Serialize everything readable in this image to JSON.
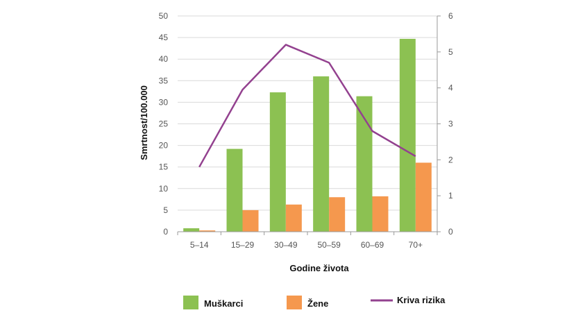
{
  "chart_data": {
    "type": "bar",
    "categories": [
      "5–14",
      "15–29",
      "30–49",
      "50–59",
      "60–69",
      "70+"
    ],
    "xlabel": "Godine života",
    "ylabel": "Smrtnost/100.000",
    "ylim": [
      0,
      50
    ],
    "y_ticks": [
      "0",
      "5",
      "10",
      "15",
      "20",
      "25",
      "30",
      "35",
      "40",
      "45",
      "50"
    ],
    "y2lim": [
      0,
      6
    ],
    "y2_ticks": [
      "0",
      "1",
      "2",
      "3",
      "4",
      "5",
      "6"
    ],
    "series": [
      {
        "name": "Muškarci",
        "type": "bar",
        "axis": "left",
        "color": "#8cc152",
        "values": [
          0.8,
          19.2,
          32.3,
          36.0,
          31.4,
          44.7
        ]
      },
      {
        "name": "Žene",
        "type": "bar",
        "axis": "left",
        "color": "#f5984e",
        "values": [
          0.3,
          5.0,
          6.3,
          8.0,
          8.2,
          16.0
        ]
      },
      {
        "name": "Kriva rizika",
        "type": "line",
        "axis": "right",
        "color": "#93418f",
        "values": [
          1.8,
          3.95,
          5.2,
          4.7,
          2.8,
          2.1
        ]
      }
    ],
    "grid": {
      "horizontal": true,
      "vertical": false
    },
    "legend_position": "bottom"
  }
}
